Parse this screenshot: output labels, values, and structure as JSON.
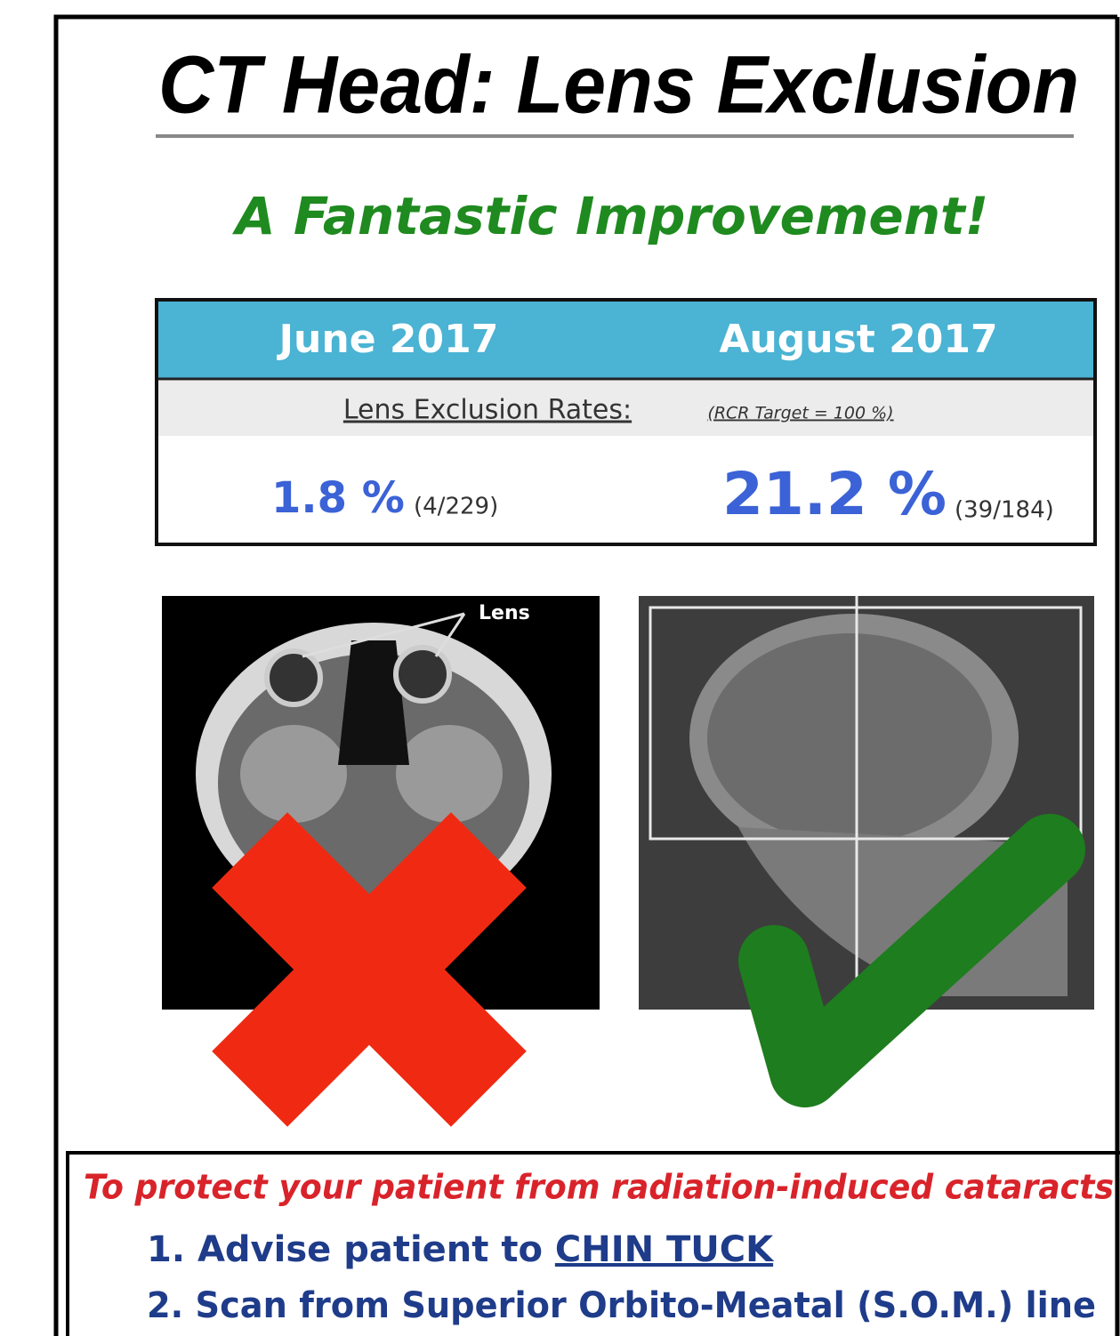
{
  "header": {
    "title": "CT Head: Lens Exclusion",
    "subtitle": "A Fantastic Improvement!"
  },
  "table": {
    "headers": [
      "June 2017",
      "August 2017"
    ],
    "caption": "Lens Exclusion Rates:",
    "target": "(RCR Target = 100 %)",
    "cells": [
      {
        "rate": "1.8 %",
        "count": "(4/229)"
      },
      {
        "rate": "21.2 %",
        "count": "(39/184)"
      }
    ]
  },
  "images": {
    "label": "Lens"
  },
  "advice": {
    "heading": "To protect your patient from radiation-induced cataracts",
    "steps": [
      {
        "number": "1.",
        "text": "Advise patient to",
        "emphasis": "CHIN TUCK"
      },
      {
        "number": "2.",
        "text": "Scan from Superior Orbito-Meatal (S.O.M.) line"
      }
    ]
  }
}
